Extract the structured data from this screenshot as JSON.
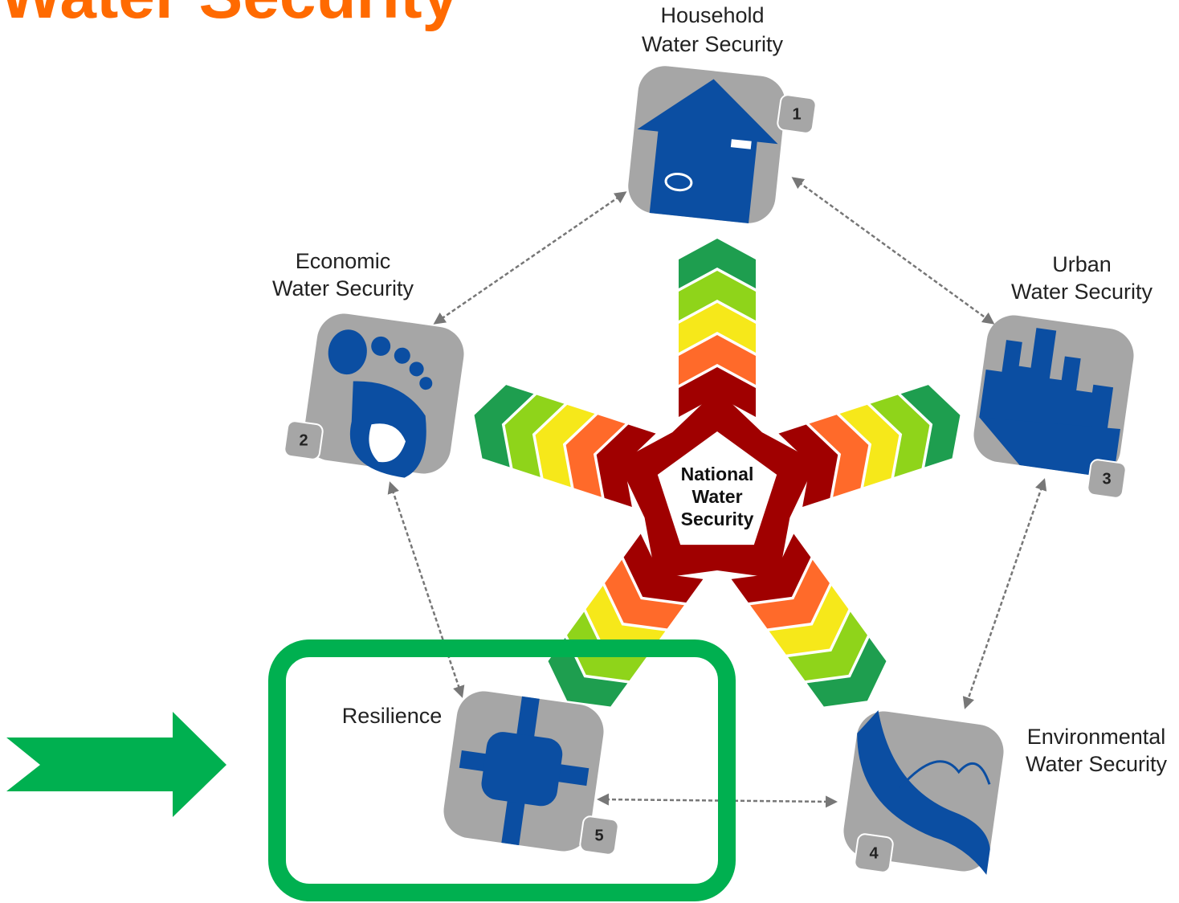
{
  "title": "Water Security",
  "center": {
    "label_lines": [
      "National",
      "Water",
      "Security"
    ]
  },
  "nodes": [
    {
      "label_lines": [
        "Household",
        "Water Security"
      ],
      "number": 1
    },
    {
      "label_lines": [
        "Economic",
        "Water Security"
      ],
      "number": 2
    },
    {
      "label_lines": [
        "Urban",
        "Water Security"
      ],
      "number": 3
    },
    {
      "label_lines": [
        "Environmental",
        "Water Security"
      ],
      "number": 4
    },
    {
      "label_lines": [
        "Resilience"
      ],
      "number": 5
    }
  ]
}
